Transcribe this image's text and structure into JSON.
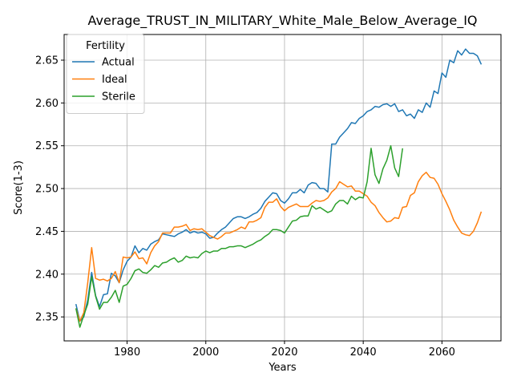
{
  "chart_data": {
    "type": "line",
    "title": "Average_TRUST_IN_MILITARY_White_Male_Below_Average_IQ",
    "xlabel": "Years",
    "ylabel": "Score(1-3)",
    "xlim": [
      1964,
      2075
    ],
    "ylim": [
      2.322,
      2.68
    ],
    "xticks": [
      1980,
      2000,
      2020,
      2040,
      2060
    ],
    "yticks": [
      2.35,
      2.4,
      2.45,
      2.5,
      2.55,
      2.6,
      2.65
    ],
    "ytick_labels": [
      "2.35",
      "2.40",
      "2.45",
      "2.50",
      "2.55",
      "2.60",
      "2.65"
    ],
    "grid": true,
    "legend": {
      "title": "Fertility",
      "placement": "top-left"
    },
    "series": [
      {
        "name": "Actual",
        "color": "#1f77b4",
        "points": [
          [
            1967,
            2.365
          ],
          [
            1968,
            2.345
          ],
          [
            1969,
            2.35
          ],
          [
            1970,
            2.37
          ],
          [
            1971,
            2.402
          ],
          [
            1972,
            2.375
          ],
          [
            1973,
            2.362
          ],
          [
            1974,
            2.376
          ],
          [
            1975,
            2.377
          ],
          [
            1976,
            2.401
          ],
          [
            1977,
            2.398
          ],
          [
            1978,
            2.39
          ],
          [
            1979,
            2.405
          ],
          [
            1980,
            2.415
          ],
          [
            1981,
            2.42
          ],
          [
            1982,
            2.433
          ],
          [
            1983,
            2.425
          ],
          [
            1984,
            2.43
          ],
          [
            1985,
            2.428
          ],
          [
            1986,
            2.435
          ],
          [
            1987,
            2.438
          ],
          [
            1988,
            2.44
          ],
          [
            1989,
            2.447
          ],
          [
            1990,
            2.446
          ],
          [
            1991,
            2.445
          ],
          [
            1992,
            2.444
          ],
          [
            1993,
            2.447
          ],
          [
            1994,
            2.449
          ],
          [
            1995,
            2.452
          ],
          [
            1996,
            2.448
          ],
          [
            1997,
            2.45
          ],
          [
            1998,
            2.448
          ],
          [
            1999,
            2.449
          ],
          [
            2000,
            2.447
          ],
          [
            2001,
            2.442
          ],
          [
            2002,
            2.443
          ],
          [
            2003,
            2.448
          ],
          [
            2004,
            2.452
          ],
          [
            2005,
            2.455
          ],
          [
            2006,
            2.46
          ],
          [
            2007,
            2.465
          ],
          [
            2008,
            2.467
          ],
          [
            2009,
            2.467
          ],
          [
            2010,
            2.465
          ],
          [
            2011,
            2.467
          ],
          [
            2012,
            2.47
          ],
          [
            2013,
            2.472
          ],
          [
            2014,
            2.477
          ],
          [
            2015,
            2.485
          ],
          [
            2016,
            2.49
          ],
          [
            2017,
            2.495
          ],
          [
            2018,
            2.494
          ],
          [
            2019,
            2.486
          ],
          [
            2020,
            2.483
          ],
          [
            2021,
            2.488
          ],
          [
            2022,
            2.495
          ],
          [
            2023,
            2.495
          ],
          [
            2024,
            2.499
          ],
          [
            2025,
            2.495
          ],
          [
            2026,
            2.504
          ],
          [
            2027,
            2.507
          ],
          [
            2028,
            2.506
          ],
          [
            2029,
            2.5
          ],
          [
            2030,
            2.5
          ],
          [
            2031,
            2.496
          ],
          [
            2032,
            2.552
          ],
          [
            2033,
            2.552
          ],
          [
            2034,
            2.56
          ],
          [
            2035,
            2.565
          ],
          [
            2036,
            2.57
          ],
          [
            2037,
            2.577
          ],
          [
            2038,
            2.576
          ],
          [
            2039,
            2.582
          ],
          [
            2040,
            2.585
          ],
          [
            2041,
            2.59
          ],
          [
            2042,
            2.592
          ],
          [
            2043,
            2.596
          ],
          [
            2044,
            2.595
          ],
          [
            2045,
            2.598
          ],
          [
            2046,
            2.599
          ],
          [
            2047,
            2.596
          ],
          [
            2048,
            2.599
          ],
          [
            2049,
            2.59
          ],
          [
            2050,
            2.592
          ],
          [
            2051,
            2.585
          ],
          [
            2052,
            2.587
          ],
          [
            2053,
            2.582
          ],
          [
            2054,
            2.592
          ],
          [
            2055,
            2.589
          ],
          [
            2056,
            2.6
          ],
          [
            2057,
            2.595
          ],
          [
            2058,
            2.614
          ],
          [
            2059,
            2.611
          ],
          [
            2060,
            2.635
          ],
          [
            2061,
            2.63
          ],
          [
            2062,
            2.65
          ],
          [
            2063,
            2.647
          ],
          [
            2064,
            2.661
          ],
          [
            2065,
            2.656
          ],
          [
            2066,
            2.663
          ],
          [
            2067,
            2.658
          ],
          [
            2068,
            2.658
          ],
          [
            2069,
            2.655
          ],
          [
            2070,
            2.645
          ]
        ]
      },
      {
        "name": "Ideal",
        "color": "#ff7f0e",
        "points": [
          [
            1967,
            2.36
          ],
          [
            1968,
            2.345
          ],
          [
            1969,
            2.355
          ],
          [
            1970,
            2.39
          ],
          [
            1971,
            2.431
          ],
          [
            1972,
            2.395
          ],
          [
            1973,
            2.393
          ],
          [
            1974,
            2.394
          ],
          [
            1975,
            2.392
          ],
          [
            1976,
            2.395
          ],
          [
            1977,
            2.403
          ],
          [
            1978,
            2.39
          ],
          [
            1979,
            2.42
          ],
          [
            1980,
            2.419
          ],
          [
            1981,
            2.42
          ],
          [
            1982,
            2.426
          ],
          [
            1983,
            2.418
          ],
          [
            1984,
            2.419
          ],
          [
            1985,
            2.412
          ],
          [
            1986,
            2.425
          ],
          [
            1987,
            2.433
          ],
          [
            1988,
            2.438
          ],
          [
            1989,
            2.448
          ],
          [
            1990,
            2.448
          ],
          [
            1991,
            2.448
          ],
          [
            1992,
            2.455
          ],
          [
            1993,
            2.455
          ],
          [
            1994,
            2.456
          ],
          [
            1995,
            2.458
          ],
          [
            1996,
            2.451
          ],
          [
            1997,
            2.453
          ],
          [
            1998,
            2.452
          ],
          [
            1999,
            2.453
          ],
          [
            2000,
            2.449
          ],
          [
            2001,
            2.445
          ],
          [
            2002,
            2.443
          ],
          [
            2003,
            2.441
          ],
          [
            2004,
            2.444
          ],
          [
            2005,
            2.448
          ],
          [
            2006,
            2.448
          ],
          [
            2007,
            2.45
          ],
          [
            2008,
            2.452
          ],
          [
            2009,
            2.455
          ],
          [
            2010,
            2.453
          ],
          [
            2011,
            2.461
          ],
          [
            2012,
            2.461
          ],
          [
            2013,
            2.463
          ],
          [
            2014,
            2.466
          ],
          [
            2015,
            2.478
          ],
          [
            2016,
            2.484
          ],
          [
            2017,
            2.484
          ],
          [
            2018,
            2.488
          ],
          [
            2019,
            2.479
          ],
          [
            2020,
            2.474
          ],
          [
            2021,
            2.478
          ],
          [
            2022,
            2.48
          ],
          [
            2023,
            2.482
          ],
          [
            2024,
            2.479
          ],
          [
            2025,
            2.479
          ],
          [
            2026,
            2.479
          ],
          [
            2027,
            2.483
          ],
          [
            2028,
            2.486
          ],
          [
            2029,
            2.485
          ],
          [
            2030,
            2.486
          ],
          [
            2031,
            2.489
          ],
          [
            2032,
            2.496
          ],
          [
            2033,
            2.5
          ],
          [
            2034,
            2.508
          ],
          [
            2035,
            2.505
          ],
          [
            2036,
            2.502
          ],
          [
            2037,
            2.503
          ],
          [
            2038,
            2.497
          ],
          [
            2039,
            2.497
          ],
          [
            2040,
            2.494
          ],
          [
            2041,
            2.491
          ],
          [
            2042,
            2.484
          ],
          [
            2043,
            2.48
          ],
          [
            2044,
            2.472
          ],
          [
            2045,
            2.466
          ],
          [
            2046,
            2.461
          ],
          [
            2047,
            2.462
          ],
          [
            2048,
            2.466
          ],
          [
            2049,
            2.465
          ],
          [
            2050,
            2.478
          ],
          [
            2051,
            2.479
          ],
          [
            2052,
            2.492
          ],
          [
            2053,
            2.495
          ],
          [
            2054,
            2.508
          ],
          [
            2055,
            2.515
          ],
          [
            2056,
            2.519
          ],
          [
            2057,
            2.513
          ],
          [
            2058,
            2.512
          ],
          [
            2059,
            2.505
          ],
          [
            2060,
            2.494
          ],
          [
            2061,
            2.485
          ],
          [
            2062,
            2.475
          ],
          [
            2063,
            2.463
          ],
          [
            2064,
            2.455
          ],
          [
            2065,
            2.448
          ],
          [
            2066,
            2.446
          ],
          [
            2067,
            2.445
          ],
          [
            2068,
            2.45
          ],
          [
            2069,
            2.46
          ],
          [
            2070,
            2.473
          ]
        ]
      },
      {
        "name": "Sterile",
        "color": "#2ca02c",
        "points": [
          [
            1967,
            2.36
          ],
          [
            1968,
            2.338
          ],
          [
            1969,
            2.352
          ],
          [
            1970,
            2.365
          ],
          [
            1971,
            2.397
          ],
          [
            1972,
            2.374
          ],
          [
            1973,
            2.359
          ],
          [
            1974,
            2.367
          ],
          [
            1975,
            2.367
          ],
          [
            1976,
            2.373
          ],
          [
            1977,
            2.381
          ],
          [
            1978,
            2.367
          ],
          [
            1979,
            2.386
          ],
          [
            1980,
            2.388
          ],
          [
            1981,
            2.395
          ],
          [
            1982,
            2.404
          ],
          [
            1983,
            2.406
          ],
          [
            1984,
            2.402
          ],
          [
            1985,
            2.401
          ],
          [
            1986,
            2.405
          ],
          [
            1987,
            2.41
          ],
          [
            1988,
            2.408
          ],
          [
            1989,
            2.413
          ],
          [
            1990,
            2.414
          ],
          [
            1991,
            2.417
          ],
          [
            1992,
            2.419
          ],
          [
            1993,
            2.414
          ],
          [
            1994,
            2.416
          ],
          [
            1995,
            2.421
          ],
          [
            1996,
            2.419
          ],
          [
            1997,
            2.42
          ],
          [
            1998,
            2.419
          ],
          [
            1999,
            2.424
          ],
          [
            2000,
            2.427
          ],
          [
            2001,
            2.425
          ],
          [
            2002,
            2.427
          ],
          [
            2003,
            2.427
          ],
          [
            2004,
            2.43
          ],
          [
            2005,
            2.43
          ],
          [
            2006,
            2.432
          ],
          [
            2007,
            2.432
          ],
          [
            2008,
            2.433
          ],
          [
            2009,
            2.433
          ],
          [
            2010,
            2.431
          ],
          [
            2011,
            2.433
          ],
          [
            2012,
            2.435
          ],
          [
            2013,
            2.438
          ],
          [
            2014,
            2.44
          ],
          [
            2015,
            2.444
          ],
          [
            2016,
            2.447
          ],
          [
            2017,
            2.452
          ],
          [
            2018,
            2.452
          ],
          [
            2019,
            2.451
          ],
          [
            2020,
            2.448
          ],
          [
            2021,
            2.455
          ],
          [
            2022,
            2.462
          ],
          [
            2023,
            2.463
          ],
          [
            2024,
            2.467
          ],
          [
            2025,
            2.468
          ],
          [
            2026,
            2.468
          ],
          [
            2027,
            2.48
          ],
          [
            2028,
            2.476
          ],
          [
            2029,
            2.478
          ],
          [
            2030,
            2.475
          ],
          [
            2031,
            2.472
          ],
          [
            2032,
            2.474
          ],
          [
            2033,
            2.482
          ],
          [
            2034,
            2.486
          ],
          [
            2035,
            2.486
          ],
          [
            2036,
            2.482
          ],
          [
            2037,
            2.491
          ],
          [
            2038,
            2.487
          ],
          [
            2039,
            2.49
          ],
          [
            2040,
            2.489
          ],
          [
            2041,
            2.508
          ],
          [
            2042,
            2.547
          ],
          [
            2043,
            2.516
          ],
          [
            2044,
            2.506
          ],
          [
            2045,
            2.523
          ],
          [
            2046,
            2.533
          ],
          [
            2047,
            2.55
          ],
          [
            2048,
            2.524
          ],
          [
            2049,
            2.514
          ],
          [
            2050,
            2.547
          ]
        ]
      }
    ]
  }
}
